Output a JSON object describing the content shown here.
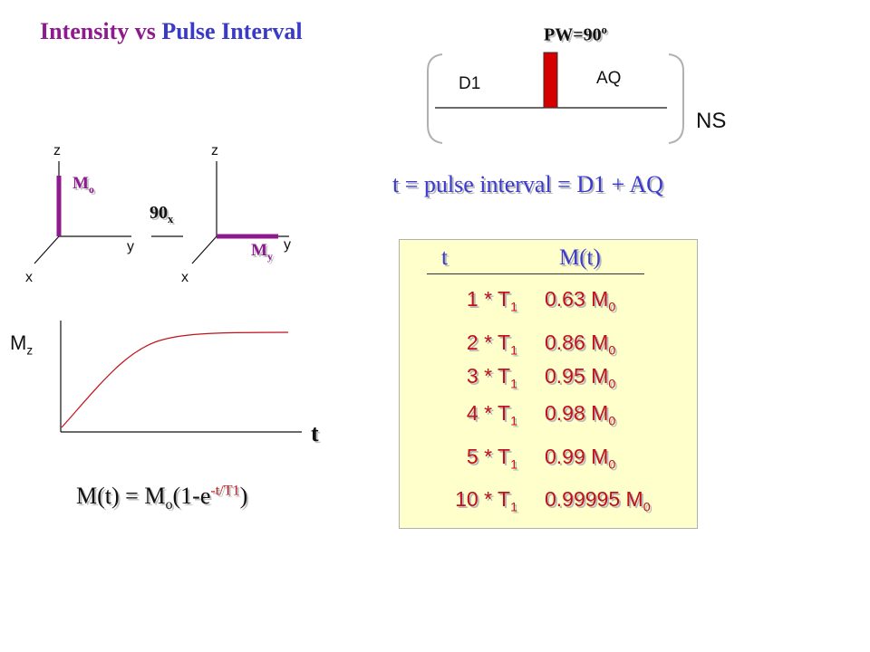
{
  "title": {
    "part1": "Intensity vs",
    "part2": "Pulse Interval"
  },
  "pulse_sequence": {
    "pw_label": "PW=90",
    "pw_sup": "o",
    "d1_label": "D1",
    "aq_label": "AQ",
    "ns_label": "NS",
    "pulse_color": "#d40000"
  },
  "interval_definition": "t = pulse interval = D1 + AQ",
  "vector_diagram": {
    "left": {
      "z": "z",
      "y": "y",
      "x": "x",
      "vector_label": "M",
      "vector_sub": "o"
    },
    "rotation": {
      "label": "90",
      "sub": "x"
    },
    "right": {
      "z": "z",
      "y": "y",
      "x": "x",
      "vector_label": "M",
      "vector_sub": "y"
    },
    "vector_color": "#8e1a8e"
  },
  "recovery_plot": {
    "ylabel": "M",
    "ylabel_sub": "z",
    "xlabel": "t",
    "curve_color": "#c0121a"
  },
  "formula": {
    "lhs": "M(t) = M",
    "lhs_sub": "o",
    "mid": "(1-e",
    "exp": "-t/T1",
    "rhs": ")"
  },
  "table": {
    "headers": [
      "t",
      "M(t)"
    ],
    "rows": [
      {
        "t_prefix": "1 * T",
        "t_sub": "1",
        "m_prefix": "0.63 M",
        "m_sub": "0"
      },
      {
        "t_prefix": "2 * T",
        "t_sub": "1",
        "m_prefix": "0.86 M",
        "m_sub": "0"
      },
      {
        "t_prefix": "3 * T",
        "t_sub": "1",
        "m_prefix": "0.95 M",
        "m_sub": "0"
      },
      {
        "t_prefix": "4 * T",
        "t_sub": "1",
        "m_prefix": "0.98 M",
        "m_sub": "0"
      },
      {
        "t_prefix": "5 * T",
        "t_sub": "1",
        "m_prefix": "0.99 M",
        "m_sub": "0"
      },
      {
        "t_prefix": "10 * T",
        "t_sub": "1",
        "m_prefix": "0.99995 M",
        "m_sub": "0"
      }
    ]
  }
}
